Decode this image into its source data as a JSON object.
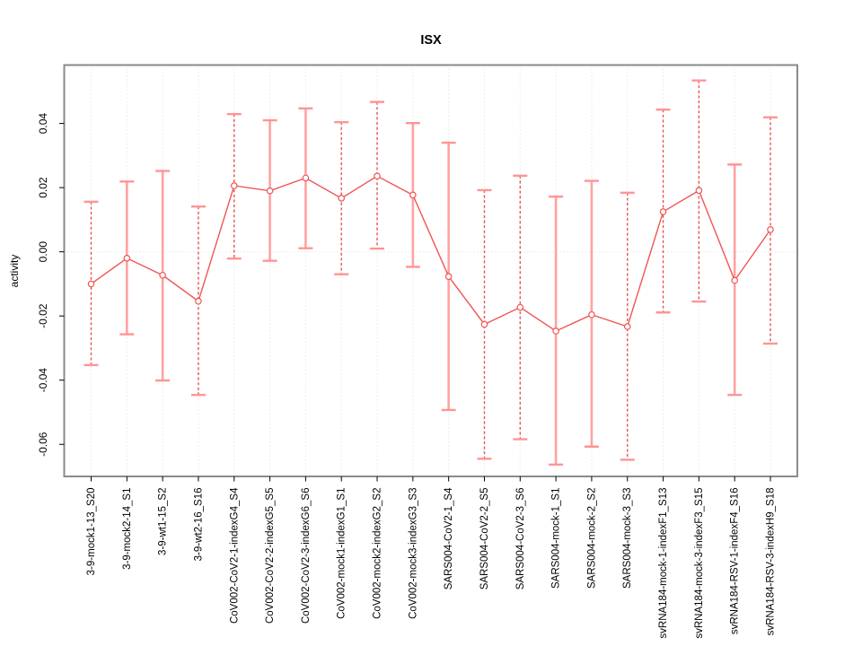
{
  "figure": {
    "kind": "R-style errorbar line plot",
    "background": "#ffffff"
  },
  "chart_data": {
    "type": "line",
    "subtype": "means-with-error-bars",
    "title": "ISX",
    "xlabel": "",
    "ylabel": "activity",
    "ylim": [
      -0.07,
      0.0582
    ],
    "grid": {
      "vertical_dotted": true,
      "zero_line_dotted": true,
      "legend": "none"
    },
    "yticks": [
      {
        "label": "0.04",
        "value": 0.04
      },
      {
        "label": "0.02",
        "value": 0.02
      },
      {
        "label": "0.00",
        "value": 0.0
      },
      {
        "label": "-0.02",
        "value": -0.02
      },
      {
        "label": "-0.04",
        "value": -0.04
      },
      {
        "label": "-0.06",
        "value": -0.06
      }
    ],
    "categories": [
      "3-9-mock1-13_S20",
      "3-9-mock2-14_S1",
      "3-9-wt1-15_S2",
      "3-9-wt2-16_S16",
      "CoV002-CoV2-1-indexG4_S4",
      "CoV002-CoV2-2-indexG5_S5",
      "CoV002-CoV2-3-indexG6_S6",
      "CoV002-mock1-indexG1_S1",
      "CoV002-mock2-indexG2_S2",
      "CoV002-mock3-indexG3_S3",
      "SARS004-CoV2-1_S4",
      "SARS004-CoV2-2_S5",
      "SARS004-CoV2-3_S6",
      "SARS004-mock-1_S1",
      "SARS004-mock-2_S2",
      "SARS004-mock-3_S3",
      "svRNA184-mock-1-indexF1_S13",
      "svRNA184-mock-3-indexF3_S15",
      "svRNA184-RSV-1-indexF4_S16",
      "svRNA184-RSV-3-indexH9_S18"
    ],
    "series": [
      {
        "name": "activity",
        "points": [
          {
            "value": -0.01,
            "lo": -0.0353,
            "hi": 0.0156,
            "bar_style": "dashed"
          },
          {
            "value": -0.002,
            "lo": -0.0257,
            "hi": 0.0219,
            "bar_style": "solid"
          },
          {
            "value": -0.0073,
            "lo": -0.0401,
            "hi": 0.0252,
            "bar_style": "solid"
          },
          {
            "value": -0.0154,
            "lo": -0.0446,
            "hi": 0.0141,
            "bar_style": "dashed"
          },
          {
            "value": 0.0206,
            "lo": -0.0021,
            "hi": 0.0429,
            "bar_style": "dashed"
          },
          {
            "value": 0.019,
            "lo": -0.0028,
            "hi": 0.041,
            "bar_style": "solid"
          },
          {
            "value": 0.023,
            "lo": 0.0011,
            "hi": 0.0447,
            "bar_style": "solid"
          },
          {
            "value": 0.0167,
            "lo": -0.007,
            "hi": 0.0404,
            "bar_style": "dashed"
          },
          {
            "value": 0.0236,
            "lo": 0.001,
            "hi": 0.0467,
            "bar_style": "dashed"
          },
          {
            "value": 0.0177,
            "lo": -0.0047,
            "hi": 0.0401,
            "bar_style": "solid"
          },
          {
            "value": -0.0077,
            "lo": -0.0493,
            "hi": 0.034,
            "bar_style": "solid"
          },
          {
            "value": -0.0226,
            "lo": -0.0645,
            "hi": 0.0192,
            "bar_style": "dashed"
          },
          {
            "value": -0.0173,
            "lo": -0.0584,
            "hi": 0.0237,
            "bar_style": "dashed"
          },
          {
            "value": -0.0247,
            "lo": -0.0663,
            "hi": 0.0172,
            "bar_style": "solid"
          },
          {
            "value": -0.0196,
            "lo": -0.0607,
            "hi": 0.0221,
            "bar_style": "solid"
          },
          {
            "value": -0.0233,
            "lo": -0.0648,
            "hi": 0.0184,
            "bar_style": "dashed"
          },
          {
            "value": 0.0125,
            "lo": -0.0189,
            "hi": 0.0443,
            "bar_style": "dashed"
          },
          {
            "value": 0.0191,
            "lo": -0.0155,
            "hi": 0.0534,
            "bar_style": "dashed"
          },
          {
            "value": -0.0089,
            "lo": -0.0446,
            "hi": 0.0272,
            "bar_style": "solid"
          },
          {
            "value": 0.0069,
            "lo": -0.0286,
            "hi": 0.0419,
            "bar_style": "dashed"
          }
        ]
      }
    ],
    "colors": {
      "marker_line": "#F05454",
      "bar_solid": "#FFA2A2",
      "bar_dashed": "#E85252",
      "cap": "#FF9494",
      "grid": "#DBDBDB",
      "border": "#8A8A8A",
      "tick": "#000000",
      "text": "#000000"
    }
  }
}
